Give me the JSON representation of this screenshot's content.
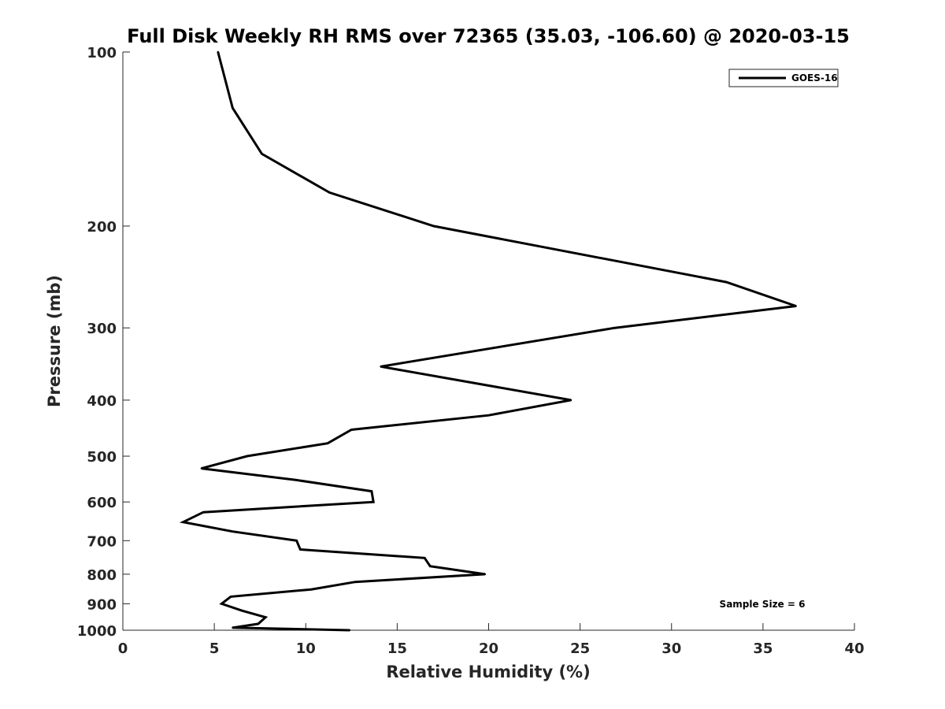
{
  "chart_data": {
    "type": "line",
    "title": "Full Disk Weekly RH RMS over 72365 (35.03, -106.60) @ 2020-03-15",
    "xlabel": "Relative Humidity (%)",
    "ylabel": "Pressure (mb)",
    "xlim": [
      0,
      40
    ],
    "ylim": [
      100,
      1000
    ],
    "y_scale": "log",
    "y_reversed": true,
    "x_ticks": [
      0,
      5,
      10,
      15,
      20,
      25,
      30,
      35,
      40
    ],
    "y_ticks": [
      100,
      200,
      300,
      400,
      500,
      600,
      700,
      800,
      900,
      1000
    ],
    "grid": false,
    "legend_position": "top-right",
    "annotation": "Sample Size = 6",
    "series": [
      {
        "name": "GOES-16",
        "color": "#000000",
        "points": [
          {
            "x": 5.2,
            "y": 100
          },
          {
            "x": 6.0,
            "y": 125
          },
          {
            "x": 7.6,
            "y": 150
          },
          {
            "x": 11.3,
            "y": 175
          },
          {
            "x": 17.0,
            "y": 200
          },
          {
            "x": 33.0,
            "y": 250
          },
          {
            "x": 36.8,
            "y": 275
          },
          {
            "x": 26.9,
            "y": 300
          },
          {
            "x": 14.1,
            "y": 350
          },
          {
            "x": 24.5,
            "y": 400
          },
          {
            "x": 20.0,
            "y": 425
          },
          {
            "x": 12.5,
            "y": 450
          },
          {
            "x": 11.2,
            "y": 475
          },
          {
            "x": 6.8,
            "y": 500
          },
          {
            "x": 4.3,
            "y": 525
          },
          {
            "x": 9.5,
            "y": 550
          },
          {
            "x": 13.6,
            "y": 575
          },
          {
            "x": 13.7,
            "y": 600
          },
          {
            "x": 4.4,
            "y": 625
          },
          {
            "x": 3.3,
            "y": 650
          },
          {
            "x": 6.0,
            "y": 675
          },
          {
            "x": 9.5,
            "y": 700
          },
          {
            "x": 9.7,
            "y": 725
          },
          {
            "x": 16.5,
            "y": 750
          },
          {
            "x": 16.8,
            "y": 775
          },
          {
            "x": 19.8,
            "y": 800
          },
          {
            "x": 12.7,
            "y": 825
          },
          {
            "x": 10.3,
            "y": 850
          },
          {
            "x": 5.9,
            "y": 875
          },
          {
            "x": 5.4,
            "y": 900
          },
          {
            "x": 6.5,
            "y": 925
          },
          {
            "x": 7.8,
            "y": 950
          },
          {
            "x": 7.4,
            "y": 975
          },
          {
            "x": 6.0,
            "y": 990
          },
          {
            "x": 12.4,
            "y": 1000
          }
        ]
      }
    ]
  }
}
